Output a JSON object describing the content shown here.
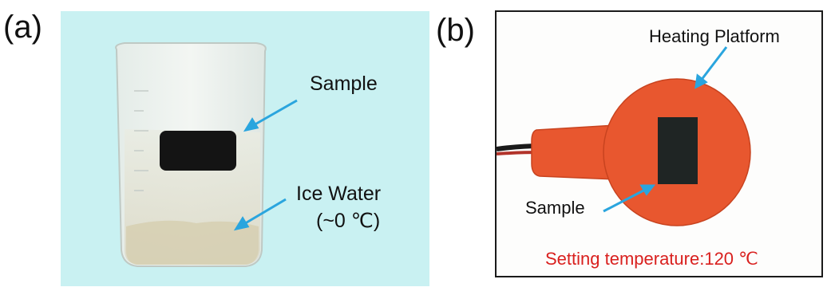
{
  "panels": {
    "a": {
      "label": "(a)",
      "sample_label": "Sample",
      "ice_water_label": "Ice Water",
      "ice_temp_label": "(~0 ℃)",
      "colors": {
        "background": "#c9f1f2",
        "arrow": "#2aa5de",
        "sample": "#141414"
      }
    },
    "b": {
      "label": "(b)",
      "heating_label": "Heating Platform",
      "sample_label": "Sample",
      "setting_label": "Setting temperature:120 ℃",
      "colors": {
        "platform": "#e8572f",
        "arrow": "#2aa5de",
        "text_red": "#d9201e"
      }
    }
  }
}
